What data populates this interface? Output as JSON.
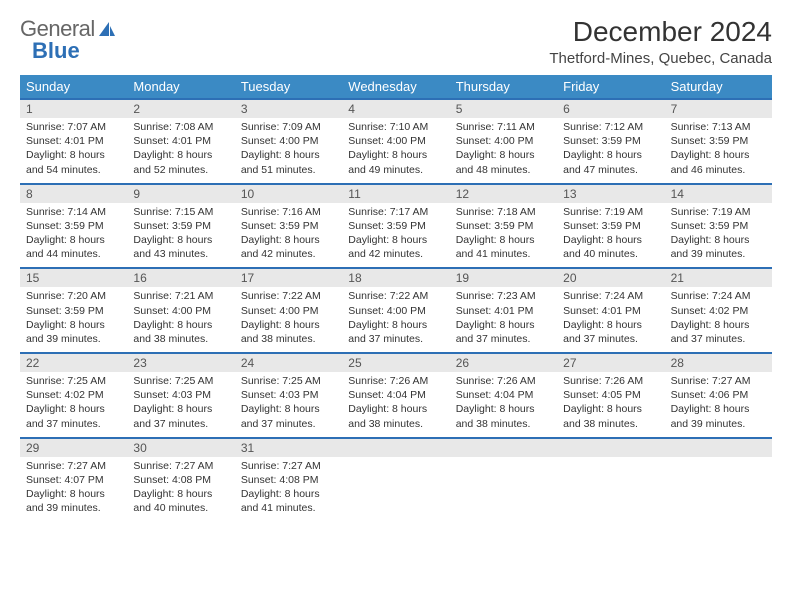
{
  "logo": {
    "text1": "General",
    "text2": "Blue"
  },
  "title": "December 2024",
  "location": "Thetford-Mines, Quebec, Canada",
  "colors": {
    "header_bar": "#3b8ac4",
    "week_divider": "#2d6fb5",
    "daynum_bg": "#e8e8e8",
    "text": "#333333"
  },
  "daynames": [
    "Sunday",
    "Monday",
    "Tuesday",
    "Wednesday",
    "Thursday",
    "Friday",
    "Saturday"
  ],
  "weeks": [
    [
      {
        "num": "1",
        "sunrise": "Sunrise: 7:07 AM",
        "sunset": "Sunset: 4:01 PM",
        "daylight": "Daylight: 8 hours and 54 minutes."
      },
      {
        "num": "2",
        "sunrise": "Sunrise: 7:08 AM",
        "sunset": "Sunset: 4:01 PM",
        "daylight": "Daylight: 8 hours and 52 minutes."
      },
      {
        "num": "3",
        "sunrise": "Sunrise: 7:09 AM",
        "sunset": "Sunset: 4:00 PM",
        "daylight": "Daylight: 8 hours and 51 minutes."
      },
      {
        "num": "4",
        "sunrise": "Sunrise: 7:10 AM",
        "sunset": "Sunset: 4:00 PM",
        "daylight": "Daylight: 8 hours and 49 minutes."
      },
      {
        "num": "5",
        "sunrise": "Sunrise: 7:11 AM",
        "sunset": "Sunset: 4:00 PM",
        "daylight": "Daylight: 8 hours and 48 minutes."
      },
      {
        "num": "6",
        "sunrise": "Sunrise: 7:12 AM",
        "sunset": "Sunset: 3:59 PM",
        "daylight": "Daylight: 8 hours and 47 minutes."
      },
      {
        "num": "7",
        "sunrise": "Sunrise: 7:13 AM",
        "sunset": "Sunset: 3:59 PM",
        "daylight": "Daylight: 8 hours and 46 minutes."
      }
    ],
    [
      {
        "num": "8",
        "sunrise": "Sunrise: 7:14 AM",
        "sunset": "Sunset: 3:59 PM",
        "daylight": "Daylight: 8 hours and 44 minutes."
      },
      {
        "num": "9",
        "sunrise": "Sunrise: 7:15 AM",
        "sunset": "Sunset: 3:59 PM",
        "daylight": "Daylight: 8 hours and 43 minutes."
      },
      {
        "num": "10",
        "sunrise": "Sunrise: 7:16 AM",
        "sunset": "Sunset: 3:59 PM",
        "daylight": "Daylight: 8 hours and 42 minutes."
      },
      {
        "num": "11",
        "sunrise": "Sunrise: 7:17 AM",
        "sunset": "Sunset: 3:59 PM",
        "daylight": "Daylight: 8 hours and 42 minutes."
      },
      {
        "num": "12",
        "sunrise": "Sunrise: 7:18 AM",
        "sunset": "Sunset: 3:59 PM",
        "daylight": "Daylight: 8 hours and 41 minutes."
      },
      {
        "num": "13",
        "sunrise": "Sunrise: 7:19 AM",
        "sunset": "Sunset: 3:59 PM",
        "daylight": "Daylight: 8 hours and 40 minutes."
      },
      {
        "num": "14",
        "sunrise": "Sunrise: 7:19 AM",
        "sunset": "Sunset: 3:59 PM",
        "daylight": "Daylight: 8 hours and 39 minutes."
      }
    ],
    [
      {
        "num": "15",
        "sunrise": "Sunrise: 7:20 AM",
        "sunset": "Sunset: 3:59 PM",
        "daylight": "Daylight: 8 hours and 39 minutes."
      },
      {
        "num": "16",
        "sunrise": "Sunrise: 7:21 AM",
        "sunset": "Sunset: 4:00 PM",
        "daylight": "Daylight: 8 hours and 38 minutes."
      },
      {
        "num": "17",
        "sunrise": "Sunrise: 7:22 AM",
        "sunset": "Sunset: 4:00 PM",
        "daylight": "Daylight: 8 hours and 38 minutes."
      },
      {
        "num": "18",
        "sunrise": "Sunrise: 7:22 AM",
        "sunset": "Sunset: 4:00 PM",
        "daylight": "Daylight: 8 hours and 37 minutes."
      },
      {
        "num": "19",
        "sunrise": "Sunrise: 7:23 AM",
        "sunset": "Sunset: 4:01 PM",
        "daylight": "Daylight: 8 hours and 37 minutes."
      },
      {
        "num": "20",
        "sunrise": "Sunrise: 7:24 AM",
        "sunset": "Sunset: 4:01 PM",
        "daylight": "Daylight: 8 hours and 37 minutes."
      },
      {
        "num": "21",
        "sunrise": "Sunrise: 7:24 AM",
        "sunset": "Sunset: 4:02 PM",
        "daylight": "Daylight: 8 hours and 37 minutes."
      }
    ],
    [
      {
        "num": "22",
        "sunrise": "Sunrise: 7:25 AM",
        "sunset": "Sunset: 4:02 PM",
        "daylight": "Daylight: 8 hours and 37 minutes."
      },
      {
        "num": "23",
        "sunrise": "Sunrise: 7:25 AM",
        "sunset": "Sunset: 4:03 PM",
        "daylight": "Daylight: 8 hours and 37 minutes."
      },
      {
        "num": "24",
        "sunrise": "Sunrise: 7:25 AM",
        "sunset": "Sunset: 4:03 PM",
        "daylight": "Daylight: 8 hours and 37 minutes."
      },
      {
        "num": "25",
        "sunrise": "Sunrise: 7:26 AM",
        "sunset": "Sunset: 4:04 PM",
        "daylight": "Daylight: 8 hours and 38 minutes."
      },
      {
        "num": "26",
        "sunrise": "Sunrise: 7:26 AM",
        "sunset": "Sunset: 4:04 PM",
        "daylight": "Daylight: 8 hours and 38 minutes."
      },
      {
        "num": "27",
        "sunrise": "Sunrise: 7:26 AM",
        "sunset": "Sunset: 4:05 PM",
        "daylight": "Daylight: 8 hours and 38 minutes."
      },
      {
        "num": "28",
        "sunrise": "Sunrise: 7:27 AM",
        "sunset": "Sunset: 4:06 PM",
        "daylight": "Daylight: 8 hours and 39 minutes."
      }
    ],
    [
      {
        "num": "29",
        "sunrise": "Sunrise: 7:27 AM",
        "sunset": "Sunset: 4:07 PM",
        "daylight": "Daylight: 8 hours and 39 minutes."
      },
      {
        "num": "30",
        "sunrise": "Sunrise: 7:27 AM",
        "sunset": "Sunset: 4:08 PM",
        "daylight": "Daylight: 8 hours and 40 minutes."
      },
      {
        "num": "31",
        "sunrise": "Sunrise: 7:27 AM",
        "sunset": "Sunset: 4:08 PM",
        "daylight": "Daylight: 8 hours and 41 minutes."
      },
      {
        "num": "",
        "sunrise": "",
        "sunset": "",
        "daylight": ""
      },
      {
        "num": "",
        "sunrise": "",
        "sunset": "",
        "daylight": ""
      },
      {
        "num": "",
        "sunrise": "",
        "sunset": "",
        "daylight": ""
      },
      {
        "num": "",
        "sunrise": "",
        "sunset": "",
        "daylight": ""
      }
    ]
  ]
}
